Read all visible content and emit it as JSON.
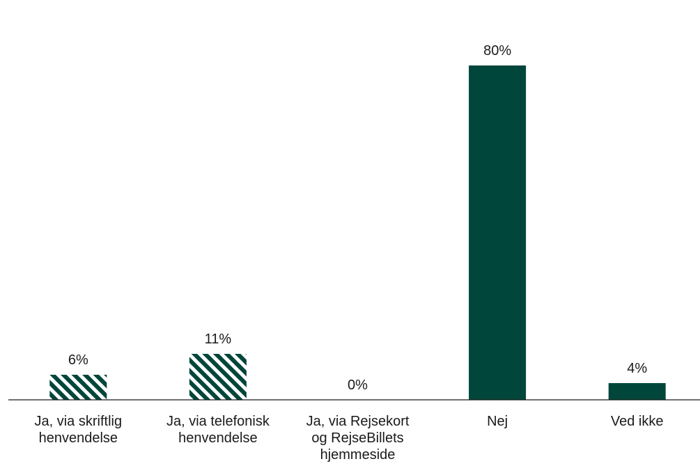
{
  "chart_data": {
    "type": "bar",
    "categories": [
      [
        "Ja, via skriftlig",
        "henvendelse"
      ],
      [
        "Ja, via telefonisk",
        "henvendelse"
      ],
      [
        "Ja, via Rejsekort",
        "og RejseBillets",
        "hjemmeside"
      ],
      [
        "Nej"
      ],
      [
        "Ved ikke"
      ]
    ],
    "values": [
      6,
      11,
      0,
      80,
      4
    ],
    "value_labels": [
      "6%",
      "11%",
      "0%",
      "80%",
      "4%"
    ],
    "bar_styles": [
      "hatched",
      "hatched",
      "hatched",
      "solid",
      "solid"
    ],
    "ylim": [
      0,
      100
    ],
    "grid": false,
    "colors": {
      "bar": "#00463a",
      "axis": "#1a1a1a",
      "text": "#1a1a1a"
    }
  }
}
